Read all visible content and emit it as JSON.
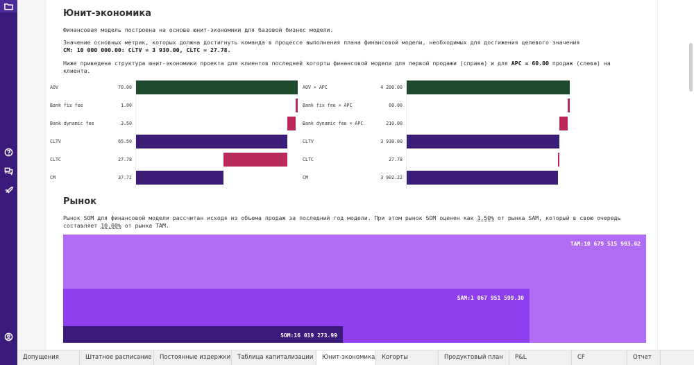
{
  "sidebar": {
    "icons": [
      "folder-icon",
      "help-icon",
      "chat-icon",
      "rocket-icon",
      "user-icon"
    ]
  },
  "unit_section": {
    "title": "Юнит-экономика",
    "p1": "Финансовая модель построена на основе юнит-экономики для базовой бизнес модели.",
    "p2_line1": "Значение основных метрик, которых должна достигнуть команда в процессе выполнения плана финансовой модели, необходимых для достижения целевого значения",
    "p2_line2": "CM: 10 000 000.00: CLTV = 3 930.00, CLTC = 27.78.",
    "p3_a": "Ниже приведена структура юнит-экономики проекта для клиентов последней когорты финансовой модели для первой продажи (справа) и для ",
    "p3_b": "APC = 60.00",
    "p3_c": " продаж (слева) на",
    "p3_d": "клиента."
  },
  "chart_data": [
    {
      "type": "bar",
      "title": "",
      "categories": [
        "AOV",
        "Bank fix fee",
        "Bank dynamic fee",
        "CLTV",
        "CLTC",
        "CM"
      ],
      "value_labels": [
        "70.00",
        "1.00",
        "3.50",
        "65.50",
        "27.78",
        "37.72"
      ],
      "values": [
        70.0,
        1.0,
        3.5,
        65.5,
        27.78,
        37.72
      ],
      "xlim": [
        0,
        70.0
      ],
      "colors": [
        "#1f4a2e",
        "#b82a57",
        "#b82a57",
        "#3b1d78",
        "#b82a57",
        "#3b1d78"
      ]
    },
    {
      "type": "bar",
      "title": "",
      "categories": [
        "AOV × APC",
        "Bank fix fee × APC",
        "Bank dynamic fee × APC",
        "CLTV",
        "CLTC",
        "CM"
      ],
      "value_labels": [
        "4 200.00",
        "60.00",
        "210.00",
        "3 930.00",
        "27.78",
        "3 902.22"
      ],
      "values": [
        4200.0,
        60.0,
        210.0,
        3930.0,
        27.78,
        3902.22
      ],
      "xlim": [
        0,
        4200.0
      ],
      "colors": [
        "#1f4a2e",
        "#b82a57",
        "#b82a57",
        "#3b1d78",
        "#b82a57",
        "#3b1d78"
      ]
    }
  ],
  "market_section": {
    "title": "Рынок",
    "p1_a": "Рынок SOM для финансовой модели рассчитан исходя из объема продаж за последний год модели. При этом рынок SOM оценен как ",
    "p1_b": "1.50%",
    "p1_c": " от рынка SAM, который в свою очередь",
    "p2_a": "составляет ",
    "p2_b": "10.00%",
    "p2_c": " от рынка TAM.",
    "tam_label": "TAM:10 679 515 993.02",
    "sam_label": "SAM:1 067 951 599.30",
    "som_label": "SOM:16 019 273.99",
    "tam_color": "#b06cf2",
    "sam_color": "#8f3ef0",
    "som_color": "#3a1a7a"
  },
  "tabs": [
    "Допущения",
    "Штатное расписание",
    "Постоянные издержки",
    "Таблица капитализации",
    "Юнит-экономика",
    "Когорты",
    "Продуктовый план",
    "P&L",
    "CF",
    "Отчет"
  ],
  "active_tab": "Юнит-экономика"
}
